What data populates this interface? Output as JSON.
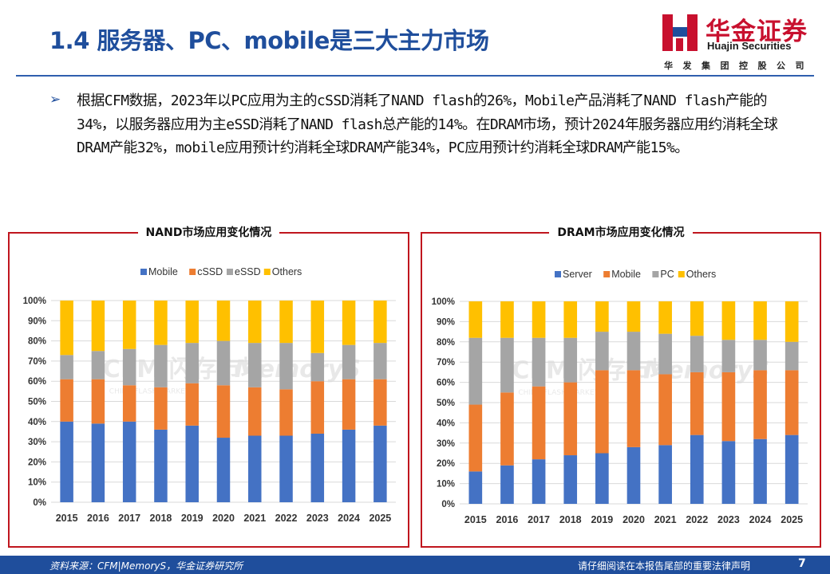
{
  "page": {
    "title": "1.4 服务器、PC、mobile是三大主力市场",
    "bullet_text": "根据CFM数据，2023年以PC应用为主的cSSD消耗了NAND flash的26%，Mobile产品消耗了NAND flash产能的34%，以服务器应用为主eSSD消耗了NAND flash总产能的14%。在DRAM市场，预计2024年服务器应用约消耗全球DRAM产能32%，mobile应用预计约消耗全球DRAM产能34%，PC应用预计约消耗全球DRAM产能15%。",
    "bullet_icon": "arrow-bullet-icon"
  },
  "logo": {
    "cn": "华金证券",
    "en": "Huajin Securities",
    "sub": "华发集团控股公司",
    "mark_icon": "huajin-logo-icon",
    "colors": {
      "red": "#c8102e",
      "blue": "#1f4e9c"
    }
  },
  "footer": {
    "source": "资料来源：CFM|MemoryS，华金证券研究所",
    "disclaimer": "请仔细阅读在本报告尾部的重要法律声明",
    "page_number": "7"
  },
  "chart_data": [
    {
      "type": "bar",
      "stacked": true,
      "title": "NAND市场应用变化情况",
      "categories": [
        "2015",
        "2016",
        "2017",
        "2018",
        "2019",
        "2020",
        "2021",
        "2022",
        "2023",
        "2024",
        "2025"
      ],
      "series": [
        {
          "name": "Mobile",
          "color": "#4472c4",
          "values": [
            40,
            39,
            40,
            36,
            38,
            32,
            33,
            33,
            34,
            36,
            38
          ]
        },
        {
          "name": "cSSD",
          "color": "#ed7d31",
          "values": [
            21,
            22,
            18,
            21,
            21,
            26,
            24,
            23,
            26,
            25,
            23
          ]
        },
        {
          "name": "eSSD",
          "color": "#a5a5a5",
          "values": [
            12,
            14,
            18,
            21,
            20,
            22,
            22,
            23,
            14,
            17,
            18
          ]
        },
        {
          "name": "Others",
          "color": "#ffc000",
          "values": [
            27,
            25,
            24,
            22,
            21,
            20,
            21,
            21,
            26,
            22,
            21
          ]
        }
      ],
      "ylim": [
        0,
        100
      ],
      "yticks": [
        "0%",
        "10%",
        "20%",
        "30%",
        "40%",
        "50%",
        "60%",
        "70%",
        "80%",
        "90%",
        "100%"
      ],
      "grid": true,
      "legend": "top",
      "watermark": [
        "CFM",
        "闪存市场",
        "MemoryS",
        "CHINA FLASH MARKET"
      ]
    },
    {
      "type": "bar",
      "stacked": true,
      "title": "DRAM市场应用变化情况",
      "categories": [
        "2015",
        "2016",
        "2017",
        "2018",
        "2019",
        "2020",
        "2021",
        "2022",
        "2023",
        "2024",
        "2025"
      ],
      "series": [
        {
          "name": "Server",
          "color": "#4472c4",
          "values": [
            16,
            19,
            22,
            24,
            25,
            28,
            29,
            34,
            31,
            32,
            34
          ]
        },
        {
          "name": "Mobile",
          "color": "#ed7d31",
          "values": [
            33,
            36,
            36,
            36,
            41,
            38,
            35,
            31,
            34,
            34,
            32
          ]
        },
        {
          "name": "PC",
          "color": "#a5a5a5",
          "values": [
            33,
            27,
            24,
            22,
            19,
            19,
            20,
            18,
            16,
            15,
            14
          ]
        },
        {
          "name": "Others",
          "color": "#ffc000",
          "values": [
            18,
            18,
            18,
            18,
            15,
            15,
            16,
            17,
            19,
            19,
            20
          ]
        }
      ],
      "ylim": [
        0,
        100
      ],
      "yticks": [
        "0%",
        "10%",
        "20%",
        "30%",
        "40%",
        "50%",
        "60%",
        "70%",
        "80%",
        "90%",
        "100%"
      ],
      "grid": true,
      "legend": "top",
      "watermark": [
        "CFM",
        "闪存市场",
        "MemoryS",
        "CHINA FLASH MARKET"
      ]
    }
  ]
}
